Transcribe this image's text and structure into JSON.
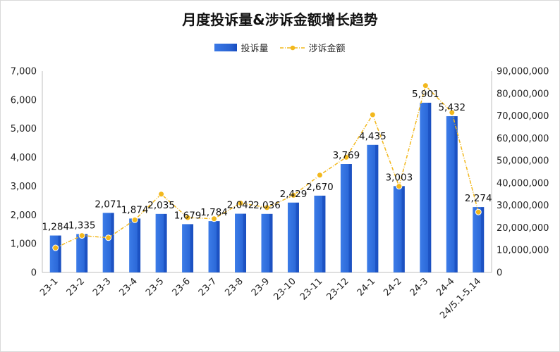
{
  "chart_data": {
    "type": "bar",
    "title": "月度投诉量&涉诉金额增长趋势",
    "categories": [
      "23-1",
      "23-2",
      "23-3",
      "23-4",
      "23-5",
      "23-6",
      "23-7",
      "23-8",
      "23-9",
      "23-10",
      "23-11",
      "23-12",
      "24-1",
      "24-2",
      "24-3",
      "24-4",
      "24/5.1-5.14"
    ],
    "series": [
      {
        "name": "投诉量",
        "type": "bar",
        "axis": "left",
        "color": "#2b6de0",
        "values": [
          1284,
          1335,
          2071,
          1874,
          2035,
          1679,
          1784,
          2042,
          2036,
          2429,
          2670,
          3769,
          4435,
          3003,
          5901,
          5432,
          2274
        ],
        "labels": [
          "1,284",
          "1,335",
          "2,071",
          "1,874",
          "2,035",
          "1,679",
          "1,784",
          "2,042",
          "2,036",
          "2,429",
          "2,670",
          "3,769",
          "4,435",
          "3,003",
          "5,901",
          "5,432",
          "2,274"
        ]
      },
      {
        "name": "涉诉金额",
        "type": "line",
        "axis": "right",
        "color": "#f2b81d",
        "style": "dashed-dotted",
        "values": [
          11000000,
          16500000,
          15500000,
          23500000,
          35000000,
          24500000,
          24000000,
          31000000,
          29000000,
          34500000,
          43500000,
          51500000,
          70500000,
          38500000,
          83500000,
          71500000,
          27000000
        ]
      }
    ],
    "y_left": {
      "min": 0,
      "max": 7000,
      "ticks": [
        "0",
        "1,000",
        "2,000",
        "3,000",
        "4,000",
        "5,000",
        "6,000",
        "7,000"
      ]
    },
    "y_right": {
      "min": 0,
      "max": 90000000,
      "ticks": [
        "0",
        "10,000,000",
        "20,000,000",
        "30,000,000",
        "40,000,000",
        "50,000,000",
        "60,000,000",
        "70,000,000",
        "80,000,000",
        "90,000,000"
      ]
    },
    "grid": false,
    "legend": "top-center",
    "xlabel": "",
    "ylabel": ""
  }
}
